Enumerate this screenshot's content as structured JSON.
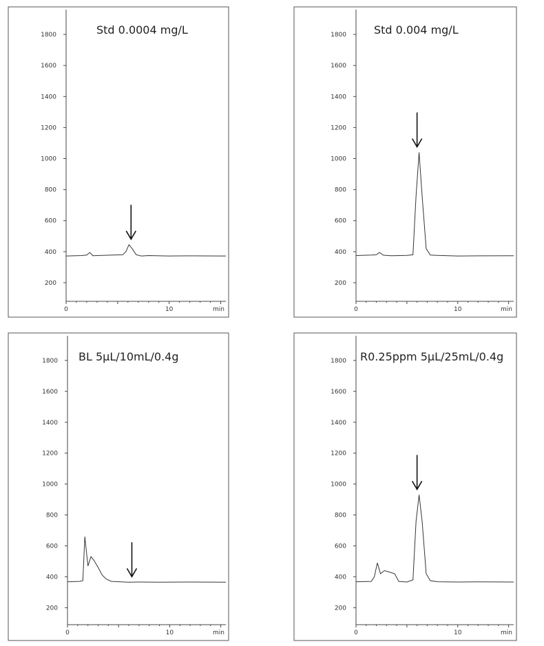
{
  "chart_data": [
    {
      "type": "line",
      "title": "Std 0.0004 mg/L",
      "x_unit": "min",
      "x_ticks": [
        0,
        10
      ],
      "y_ticks": [
        200,
        400,
        600,
        800,
        1000,
        1200,
        1400,
        1600,
        1800
      ],
      "xlim": [
        0,
        15.5
      ],
      "ylim": [
        80,
        1960
      ],
      "arrow_x": 6.3,
      "series": [
        {
          "x": [
            0,
            1.5,
            2.0,
            2.3,
            2.6,
            3.0,
            4.5,
            5.5,
            5.8,
            6.1,
            6.4,
            6.8,
            7.3,
            8.0,
            10.0,
            12.0,
            15.5
          ],
          "y": [
            372,
            375,
            378,
            395,
            374,
            375,
            378,
            380,
            400,
            445,
            420,
            380,
            372,
            375,
            372,
            373,
            372
          ]
        }
      ]
    },
    {
      "type": "line",
      "title": "Std 0.004 mg/L",
      "x_unit": "min",
      "x_ticks": [
        0,
        10
      ],
      "y_ticks": [
        200,
        400,
        600,
        800,
        1000,
        1200,
        1400,
        1600,
        1800
      ],
      "xlim": [
        0,
        15.5
      ],
      "ylim": [
        80,
        1960
      ],
      "arrow_x": 6.0,
      "series": [
        {
          "x": [
            0,
            1.5,
            2.0,
            2.3,
            2.7,
            3.5,
            5.0,
            5.6,
            5.9,
            6.2,
            6.5,
            6.9,
            7.3,
            8.0,
            10.0,
            12.0,
            15.5
          ],
          "y": [
            375,
            378,
            380,
            395,
            377,
            374,
            376,
            380,
            760,
            1040,
            760,
            420,
            378,
            376,
            372,
            373,
            374
          ]
        }
      ]
    },
    {
      "type": "line",
      "title": "BL 5µL/10mL/0.4g",
      "x_unit": "min",
      "x_ticks": [
        0,
        10
      ],
      "y_ticks": [
        200,
        400,
        600,
        800,
        1000,
        1200,
        1400,
        1600,
        1800
      ],
      "xlim": [
        0,
        15.5
      ],
      "ylim": [
        90,
        1960
      ],
      "arrow_x": 6.3,
      "series": [
        {
          "x": [
            0,
            1.2,
            1.5,
            1.7,
            2.0,
            2.3,
            2.6,
            3.0,
            3.4,
            3.8,
            4.3,
            5.0,
            6.0,
            7.0,
            9.0,
            12.0,
            15.5
          ],
          "y": [
            368,
            370,
            375,
            660,
            470,
            530,
            505,
            460,
            410,
            385,
            370,
            368,
            365,
            366,
            365,
            366,
            365
          ]
        }
      ]
    },
    {
      "type": "line",
      "title": "R0.25ppm 5µL/25mL/0.4g",
      "x_unit": "min",
      "x_ticks": [
        0,
        10
      ],
      "y_ticks": [
        200,
        400,
        600,
        800,
        1000,
        1200,
        1400,
        1600,
        1800
      ],
      "xlim": [
        0,
        15.5
      ],
      "ylim": [
        90,
        1960
      ],
      "arrow_x": 6.0,
      "series": [
        {
          "x": [
            0,
            1.5,
            1.8,
            2.1,
            2.4,
            2.8,
            3.3,
            3.8,
            4.2,
            5.0,
            5.6,
            5.9,
            6.2,
            6.5,
            6.9,
            7.3,
            8.0,
            10.0,
            12.0,
            15.5
          ],
          "y": [
            368,
            370,
            400,
            490,
            420,
            440,
            430,
            420,
            370,
            366,
            380,
            760,
            930,
            760,
            420,
            375,
            368,
            366,
            367,
            366
          ]
        }
      ]
    }
  ]
}
